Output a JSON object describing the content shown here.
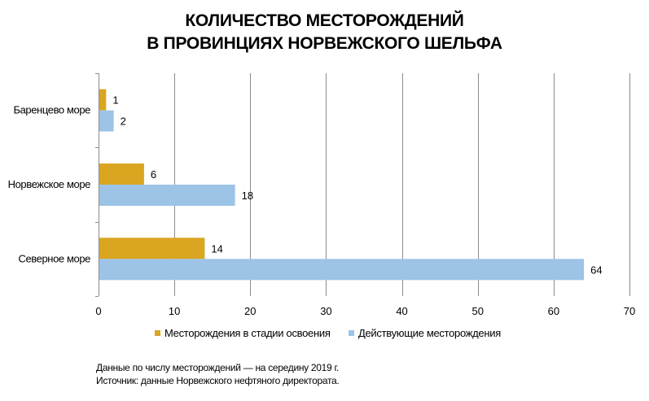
{
  "title_lines": [
    "КОЛИЧЕСТВО МЕСТОРОЖДЕНИЙ",
    "В ПРОВИНЦИЯХ НОРВЕЖСКОГО ШЕЛЬФА"
  ],
  "chart_data": {
    "type": "bar",
    "orientation": "horizontal",
    "categories": [
      "Баренцево море",
      "Норвежское море",
      "Северное море"
    ],
    "series": [
      {
        "name": "Месторождения в стадии освоения",
        "values": [
          1,
          6,
          14
        ],
        "color": "#DAA520"
      },
      {
        "name": "Действующие месторождения",
        "values": [
          2,
          18,
          64
        ],
        "color": "#9DC3E6"
      }
    ],
    "xlim": [
      0,
      70
    ],
    "xticks": [
      0,
      10,
      20,
      30,
      40,
      50,
      60,
      70
    ],
    "grid": true,
    "legend_position": "bottom"
  },
  "notes": [
    "Данные по числу месторождений — на середину 2019 г.",
    "Источник: данные Норвежского нефтяного директората."
  ]
}
